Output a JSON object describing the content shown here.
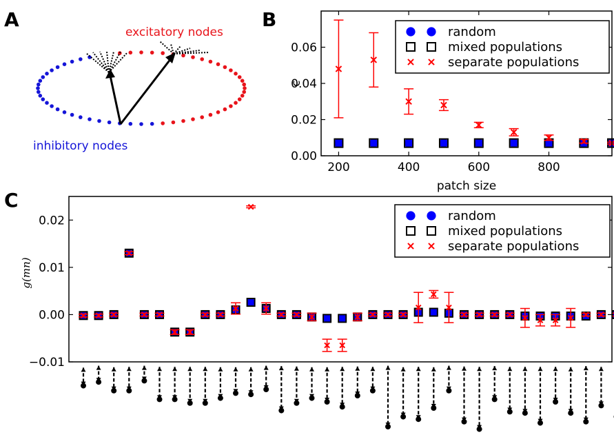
{
  "panel_a": {
    "label": "A",
    "excitatory_label": "excitatory nodes",
    "inhibitory_label": "inhibitory nodes",
    "colors": {
      "excitatory": "#e8141b",
      "inhibitory": "#1515d8"
    }
  },
  "chart_data": [
    {
      "panel": "B",
      "type": "scatter",
      "xlabel": "patch size",
      "ylabel": "c",
      "xlim": [
        150,
        980
      ],
      "ylim": [
        0.0,
        0.08
      ],
      "xticks": [
        200,
        400,
        600,
        800
      ],
      "yticks": [
        0.0,
        0.02,
        0.04,
        0.06
      ],
      "ytick_labels": [
        "0.00",
        "0.02",
        "0.04",
        "0.06"
      ],
      "grid": false,
      "legend_position": "top-right",
      "x": [
        200,
        300,
        400,
        500,
        600,
        700,
        800,
        900,
        980
      ],
      "series": [
        {
          "name": "random",
          "marker": "circle",
          "color": "#0000ff",
          "values": [
            0.007,
            0.007,
            0.007,
            0.007,
            0.007,
            0.007,
            0.007,
            0.007,
            0.007
          ]
        },
        {
          "name": "mixed populations",
          "marker": "square",
          "color": "#000000",
          "values": [
            0.007,
            0.007,
            0.007,
            0.007,
            0.007,
            0.007,
            0.007,
            0.007,
            0.007
          ]
        },
        {
          "name": "separate populations",
          "marker": "x",
          "color": "#ff0000",
          "values": [
            0.048,
            0.053,
            0.03,
            0.028,
            0.017,
            0.013,
            0.01,
            0.008,
            0.007
          ],
          "errors": [
            0.027,
            0.015,
            0.007,
            0.003,
            0.0015,
            0.002,
            0.0015,
            0.001,
            0.0005
          ]
        }
      ]
    },
    {
      "panel": "C",
      "type": "scatter",
      "xlabel": "",
      "ylabel": "g(mn)",
      "ylim": [
        -0.01,
        0.025
      ],
      "yticks": [
        -0.01,
        0.0,
        0.01,
        0.02
      ],
      "ytick_labels": [
        "−0.01",
        "0.00",
        "0.01",
        "0.02"
      ],
      "grid": false,
      "legend_position": "top-right",
      "x": [
        1,
        2,
        3,
        4,
        5,
        6,
        7,
        8,
        9,
        10,
        11,
        12,
        13,
        14,
        15,
        16,
        17,
        18,
        19,
        20,
        21,
        22,
        23,
        24,
        25,
        26,
        27,
        28,
        29,
        30,
        31,
        32,
        33,
        34,
        35,
        36,
        37
      ],
      "series": [
        {
          "name": "random",
          "marker": "circle",
          "color": "#0000ff",
          "values": [
            -0.0002,
            -0.0002,
            0.0,
            0.013,
            0.0,
            0.0,
            -0.0037,
            -0.0037,
            0.0,
            0.0,
            0.001,
            0.0026,
            0.0013,
            0.0,
            0.0,
            -0.0005,
            -0.0008,
            -0.0008,
            -0.0005,
            0.0,
            0.0,
            0.0,
            0.0005,
            0.0005,
            0.0003,
            0.0,
            0.0,
            0.0,
            0.0,
            -0.0003,
            -0.0003,
            -0.0003,
            -0.0003,
            -0.0003,
            0.0,
            0.0,
            0.0
          ]
        },
        {
          "name": "mixed populations",
          "marker": "square",
          "color": "#000000",
          "values": [
            -0.0002,
            -0.0002,
            0.0,
            0.013,
            0.0,
            0.0,
            -0.0037,
            -0.0037,
            0.0,
            0.0,
            0.001,
            0.0026,
            0.0013,
            0.0,
            0.0,
            -0.0005,
            -0.0008,
            -0.0008,
            -0.0005,
            0.0,
            0.0,
            0.0,
            0.0005,
            0.0005,
            0.0003,
            0.0,
            0.0,
            0.0,
            0.0,
            -0.0003,
            -0.0003,
            -0.0003,
            -0.0003,
            -0.0003,
            0.0,
            0.0,
            0.0
          ]
        },
        {
          "name": "separate populations",
          "marker": "x",
          "color": "#ff0000",
          "values": [
            -0.0002,
            -0.0002,
            0.0,
            0.013,
            0.0,
            0.0,
            -0.0037,
            -0.0037,
            0.0,
            0.0,
            0.0013,
            0.0228,
            0.0013,
            0.0,
            0.0,
            -0.0005,
            -0.0065,
            -0.0065,
            -0.0005,
            0.0,
            0.0,
            0.0,
            0.0015,
            0.0043,
            0.0015,
            0.0,
            0.0,
            0.0,
            0.0,
            -0.0007,
            -0.0012,
            -0.0012,
            -0.0007,
            0.0,
            0.0,
            0.0,
            0.0
          ],
          "errors": [
            0.0003,
            0.0003,
            0.0003,
            0.0003,
            0.0003,
            0.0003,
            0.0005,
            0.0005,
            0.0003,
            0.0003,
            0.0012,
            0.0002,
            0.0012,
            0.0003,
            0.0003,
            0.0008,
            0.0013,
            0.0013,
            0.0008,
            0.0003,
            0.0003,
            0.0003,
            0.0032,
            0.0008,
            0.0032,
            0.0003,
            0.0003,
            0.0003,
            0.0003,
            0.002,
            0.0012,
            0.0012,
            0.002,
            0.0003,
            0.0003,
            0.0003,
            0.0003
          ]
        }
      ]
    }
  ],
  "panel_c_diagrams": [
    [
      0.4,
      0.85
    ],
    [
      0.15,
      0.7
    ],
    [
      0.35,
      1.05
    ],
    [
      0.3,
      1.05
    ],
    [
      0.15,
      0.65
    ],
    [
      0.3,
      1.4
    ],
    [
      0.3,
      1.4
    ],
    [
      0.3,
      1.55
    ],
    [
      0.3,
      1.55
    ],
    [
      0.35,
      1.35
    ],
    [
      0.35,
      1.15
    ],
    [
      0.35,
      1.2
    ],
    [
      0.15,
      1.0
    ],
    [
      0.2,
      1.85
    ],
    [
      0.25,
      1.55
    ],
    [
      0.35,
      1.35
    ],
    [
      0.35,
      1.5
    ],
    [
      0.3,
      1.7
    ],
    [
      0.25,
      1.25
    ],
    [
      0.3,
      1.05
    ],
    [
      0.15,
      2.5
    ],
    [
      0.35,
      2.1
    ],
    [
      0.3,
      2.2
    ],
    [
      0.35,
      1.75
    ],
    [
      0.15,
      1.05
    ],
    [
      0.25,
      2.3
    ],
    [
      0.3,
      2.6
    ],
    [
      0.2,
      1.4
    ],
    [
      0.3,
      1.9
    ],
    [
      0.3,
      1.95
    ],
    [
      0.3,
      2.35
    ],
    [
      0.3,
      1.5
    ],
    [
      0.35,
      1.95
    ],
    [
      0.2,
      2.3
    ],
    [
      0.3,
      1.65
    ],
    [
      0.35,
      2.1
    ],
    [
      0.3,
      1.55
    ]
  ]
}
